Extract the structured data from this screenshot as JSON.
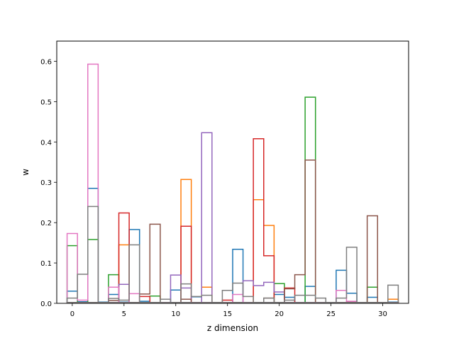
{
  "chart_data": {
    "type": "step histogram",
    "title": "",
    "xlabel": "z dimension",
    "ylabel": "w",
    "xlim": [
      -1.5,
      32.5
    ],
    "ylim": [
      0,
      0.65
    ],
    "x_ticks": [
      0,
      5,
      10,
      15,
      20,
      25,
      30
    ],
    "x_tick_labels": [
      "0",
      "5",
      "10",
      "15",
      "20",
      "25",
      "30"
    ],
    "y_ticks": [
      0.0,
      0.1,
      0.2,
      0.3,
      0.4,
      0.5,
      0.6
    ],
    "y_tick_labels": [
      "0.0",
      "0.1",
      "0.2",
      "0.3",
      "0.4",
      "0.5",
      "0.6"
    ],
    "grid": false,
    "legend": "none",
    "bin_centers": [
      0,
      1,
      2,
      3,
      4,
      5,
      6,
      7,
      8,
      9,
      10,
      11,
      12,
      13,
      14,
      15,
      16,
      17,
      18,
      19,
      20,
      21,
      22,
      23,
      24,
      25,
      26,
      27,
      28,
      29,
      30,
      31
    ],
    "series": [
      {
        "color": "#1f77b4",
        "values": [
          0.03,
          0.004,
          0.285,
          0.003,
          0.022,
          0.003,
          0.183,
          0.005,
          0.002,
          0.002,
          0.033,
          0.002,
          0.016,
          0.002,
          0.002,
          0.002,
          0.134,
          0.002,
          0.002,
          0.002,
          0.022,
          0.015,
          0.002,
          0.042,
          0.002,
          0.002,
          0.082,
          0.025,
          0.002,
          0.015,
          0.002,
          0.003
        ]
      },
      {
        "color": "#ff7f0e",
        "values": [
          0.002,
          0.002,
          0.002,
          0.002,
          0.002,
          0.145,
          0.002,
          0.002,
          0.002,
          0.002,
          0.002,
          0.307,
          0.002,
          0.04,
          0.002,
          0.002,
          0.002,
          0.002,
          0.257,
          0.193,
          0.002,
          0.002,
          0.002,
          0.002,
          0.002,
          0.002,
          0.002,
          0.002,
          0.002,
          0.002,
          0.002,
          0.01
        ]
      },
      {
        "color": "#2ca02c",
        "values": [
          0.143,
          0.002,
          0.158,
          0.002,
          0.071,
          0.002,
          0.002,
          0.002,
          0.018,
          0.002,
          0.002,
          0.002,
          0.002,
          0.002,
          0.002,
          0.002,
          0.002,
          0.002,
          0.002,
          0.002,
          0.049,
          0.002,
          0.002,
          0.511,
          0.002,
          0.002,
          0.002,
          0.002,
          0.002,
          0.04,
          0.002,
          0.002
        ]
      },
      {
        "color": "#d62728",
        "values": [
          0.002,
          0.002,
          0.002,
          0.002,
          0.002,
          0.224,
          0.002,
          0.017,
          0.002,
          0.002,
          0.002,
          0.191,
          0.002,
          0.002,
          0.002,
          0.008,
          0.002,
          0.002,
          0.408,
          0.118,
          0.002,
          0.038,
          0.002,
          0.002,
          0.002,
          0.002,
          0.002,
          0.002,
          0.002,
          0.002,
          0.002,
          0.002
        ]
      },
      {
        "color": "#9467bd",
        "values": [
          0.002,
          0.002,
          0.002,
          0.002,
          0.002,
          0.047,
          0.002,
          0.002,
          0.002,
          0.002,
          0.07,
          0.038,
          0.002,
          0.423,
          0.002,
          0.002,
          0.002,
          0.056,
          0.044,
          0.052,
          0.028,
          0.002,
          0.002,
          0.002,
          0.002,
          0.002,
          0.002,
          0.002,
          0.002,
          0.002,
          0.002,
          0.002
        ]
      },
      {
        "color": "#8c564b",
        "values": [
          0.002,
          0.002,
          0.002,
          0.002,
          0.007,
          0.002,
          0.002,
          0.023,
          0.196,
          0.002,
          0.002,
          0.01,
          0.002,
          0.002,
          0.002,
          0.002,
          0.002,
          0.002,
          0.002,
          0.013,
          0.002,
          0.036,
          0.071,
          0.355,
          0.002,
          0.002,
          0.002,
          0.004,
          0.002,
          0.217,
          0.002,
          0.002
        ]
      },
      {
        "color": "#e377c2",
        "values": [
          0.173,
          0.008,
          0.593,
          0.002,
          0.04,
          0.002,
          0.024,
          0.002,
          0.002,
          0.002,
          0.002,
          0.002,
          0.002,
          0.002,
          0.002,
          0.002,
          0.022,
          0.002,
          0.002,
          0.002,
          0.002,
          0.002,
          0.002,
          0.002,
          0.002,
          0.002,
          0.032,
          0.005,
          0.002,
          0.002,
          0.002,
          0.002
        ]
      },
      {
        "color": "#7f7f7f",
        "values": [
          0.013,
          0.072,
          0.24,
          0.002,
          0.012,
          0.008,
          0.145,
          0.002,
          0.002,
          0.01,
          0.002,
          0.048,
          0.017,
          0.02,
          0.002,
          0.032,
          0.05,
          0.017,
          0.002,
          0.013,
          0.002,
          0.008,
          0.02,
          0.02,
          0.013,
          0.002,
          0.013,
          0.139,
          0.002,
          0.002,
          0.002,
          0.045
        ]
      },
      {
        "color": "#7f7f7f",
        "values": [
          0.002,
          0.002,
          0.002,
          0.002,
          0.002,
          0.002,
          0.002,
          0.002,
          0.002,
          0.002,
          0.002,
          0.002,
          0.002,
          0.002,
          0.002,
          0.002,
          0.002,
          0.002,
          0.002,
          0.002,
          0.002,
          0.002,
          0.002,
          0.002,
          0.002,
          0.002,
          0.002,
          0.002,
          0.002,
          0.002,
          0.002,
          0.002
        ]
      }
    ]
  }
}
